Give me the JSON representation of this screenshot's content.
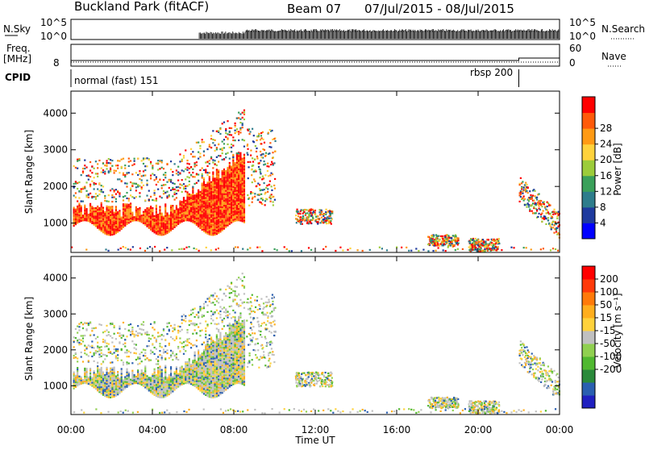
{
  "header": {
    "station": "Buckland Park (fitACF)",
    "beam": "Beam 07",
    "date_range": "07/Jul/2015 - 08/Jul/2015"
  },
  "top_panels": {
    "nsky_label": "N.Sky",
    "nsky_ticks": [
      "10^5",
      "10^0"
    ],
    "nsearch_label": "N.Search",
    "nsearch_ticks": [
      "10^5",
      "10^0"
    ],
    "freq_label": "Freq.",
    "freq_unit": "[MHz]",
    "freq_ticks": [
      "8"
    ],
    "nave_label": "Nave",
    "nave_ticks": [
      "60",
      "0"
    ],
    "cpid_label": "CPID",
    "cpid_segments": [
      {
        "label": "normal (fast) 151",
        "start_hour": 0,
        "end_hour": 22
      },
      {
        "label": "rbsp 200",
        "start_hour": 22,
        "end_hour": 24
      }
    ]
  },
  "chart_data": [
    {
      "type": "heatmap",
      "name": "power",
      "ylabel": "Slant Range [km]",
      "yticks": [
        1000,
        2000,
        3000,
        4000
      ],
      "ylim": [
        200,
        4600
      ],
      "xlim": [
        0,
        24
      ],
      "colorbar": {
        "label": "Power [dB]",
        "ticks": [
          "4",
          "8",
          "12",
          "16",
          "20",
          "24",
          "28"
        ],
        "colors": [
          "#0000ff",
          "#1e3a9e",
          "#2e7d8c",
          "#3aa05a",
          "#9ccc3a",
          "#ffd23c",
          "#ff9a14",
          "#ff5a0a",
          "#ff0000"
        ]
      }
    },
    {
      "type": "heatmap",
      "name": "velocity",
      "ylabel": "Slant Range [km]",
      "yticks": [
        1000,
        2000,
        3000,
        4000
      ],
      "ylim": [
        200,
        4600
      ],
      "xlim": [
        0,
        24
      ],
      "colorbar": {
        "label": "Velocity [m s⁻¹]",
        "ticks": [
          "200",
          "100",
          "50",
          "15",
          "-15",
          "-50",
          "-100",
          "-200"
        ],
        "colors": [
          "#2020c0",
          "#2a5fb0",
          "#2a8a3a",
          "#50b830",
          "#90d050",
          "#c0c0c0",
          "#ffd23c",
          "#ffae1e",
          "#ff7a0a",
          "#ff3a0a",
          "#ff0000"
        ]
      }
    }
  ],
  "x_axis": {
    "label": "Time UT",
    "ticks": [
      "00:00",
      "04:00",
      "08:00",
      "12:00",
      "16:00",
      "20:00",
      "00:00"
    ]
  }
}
